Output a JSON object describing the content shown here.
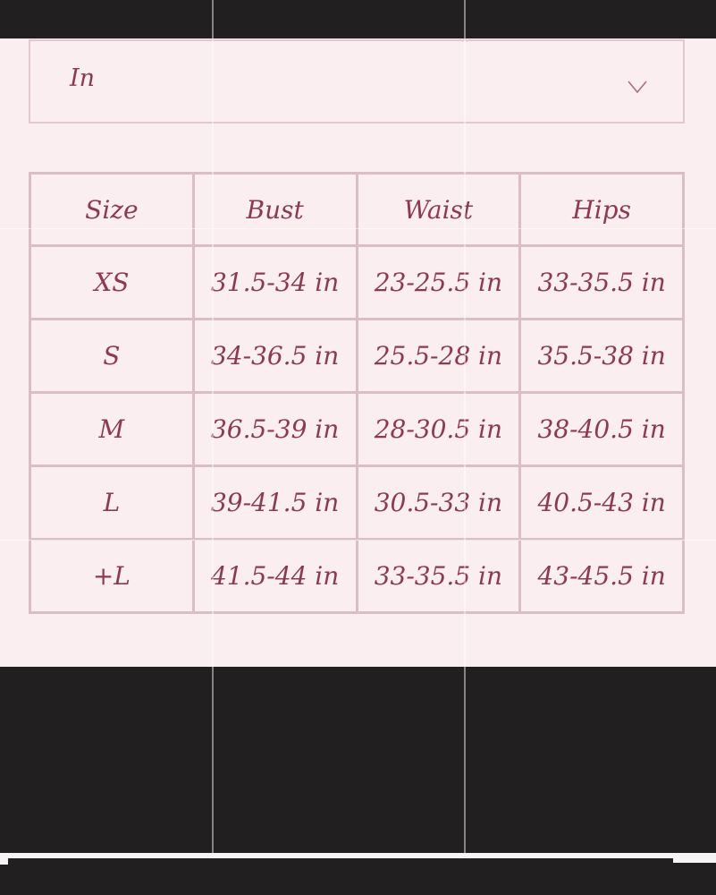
{
  "page": {
    "background_color": "#faeef1",
    "dark_bar_color": "#211f20",
    "accent_text_color": "#8c3a52",
    "table_border_color": "#d9bec6"
  },
  "unit_selector": {
    "value": "In",
    "chevron_icon": "chevron-down"
  },
  "size_chart": {
    "columns": [
      "Size",
      "Bust",
      "Waist",
      "Hips"
    ],
    "rows": [
      {
        "size": "XS",
        "bust": "31.5-34 in",
        "waist": "23-25.5 in",
        "hips": "33-35.5 in"
      },
      {
        "size": "S",
        "bust": "34-36.5 in",
        "waist": "25.5-28 in",
        "hips": "35.5-38 in"
      },
      {
        "size": "M",
        "bust": "36.5-39 in",
        "waist": "28-30.5 in",
        "hips": "38-40.5 in"
      },
      {
        "size": "L",
        "bust": "39-41.5 in",
        "waist": "30.5-33 in",
        "hips": "40.5-43 in"
      },
      {
        "size": "+L",
        "bust": "41.5-44 in",
        "waist": "33-35.5 in",
        "hips": "43-45.5 in"
      }
    ]
  }
}
